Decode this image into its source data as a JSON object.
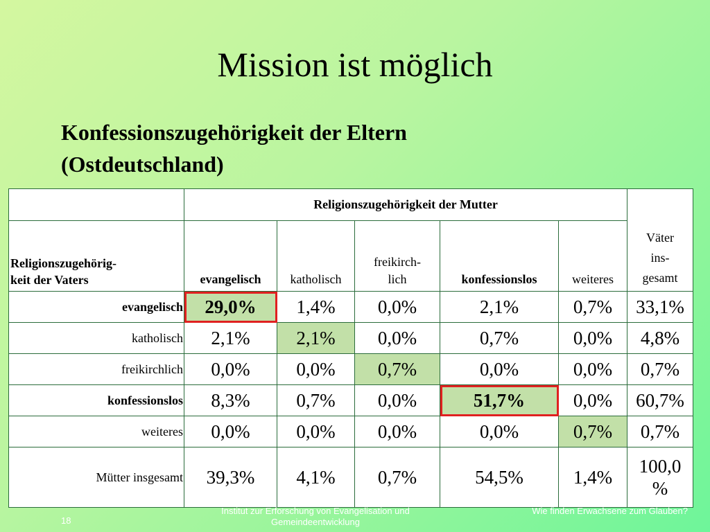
{
  "slide": {
    "title": "Mission ist möglich",
    "subtitle_line1": "Konfessionszugehörigkeit der Eltern",
    "subtitle_line2": "(Ostdeutschland)"
  },
  "table": {
    "mother_header": "Religionszugehörigkeit der Mutter",
    "father_header_line1": "Religionszugehörig-",
    "father_header_line2": "keit der Vaters",
    "columns": [
      "evangelisch",
      "katholisch",
      "freikirch-\nlich",
      "konfessionslos",
      "weiteres"
    ],
    "total_column": "Väter\nins-\ngesamt",
    "rows": [
      {
        "label": "evangelisch",
        "values": [
          "29,0%",
          "1,4%",
          "0,0%",
          "2,1%",
          "0,7%"
        ],
        "total": "33,1%"
      },
      {
        "label": "katholisch",
        "values": [
          "2,1%",
          "2,1%",
          "0,0%",
          "0,7%",
          "0,0%"
        ],
        "total": "4,8%"
      },
      {
        "label": "freikirchlich",
        "values": [
          "0,0%",
          "0,0%",
          "0,7%",
          "0,0%",
          "0,0%"
        ],
        "total": "0,7%"
      },
      {
        "label": "konfessionslos",
        "values": [
          "8,3%",
          "0,7%",
          "0,0%",
          "51,7%",
          "0,0%"
        ],
        "total": "60,7%"
      },
      {
        "label": "weiteres",
        "values": [
          "0,0%",
          "0,0%",
          "0,0%",
          "0,0%",
          "0,7%"
        ],
        "total": "0,7%"
      }
    ],
    "total_row": {
      "label": "Mütter insgesamt",
      "values": [
        "39,3%",
        "4,1%",
        "0,7%",
        "54,5%",
        "1,4%"
      ],
      "total": "100,0\n%"
    }
  },
  "footer": {
    "page": "18",
    "center": "Institut zur Erforschung von Evangelisation und Gemeindeentwicklung",
    "right": "Wie finden Erwachsene zum Glauben?"
  },
  "colors": {
    "highlight_cell": "#c2e0a8",
    "highlight_border": "#e02020"
  }
}
